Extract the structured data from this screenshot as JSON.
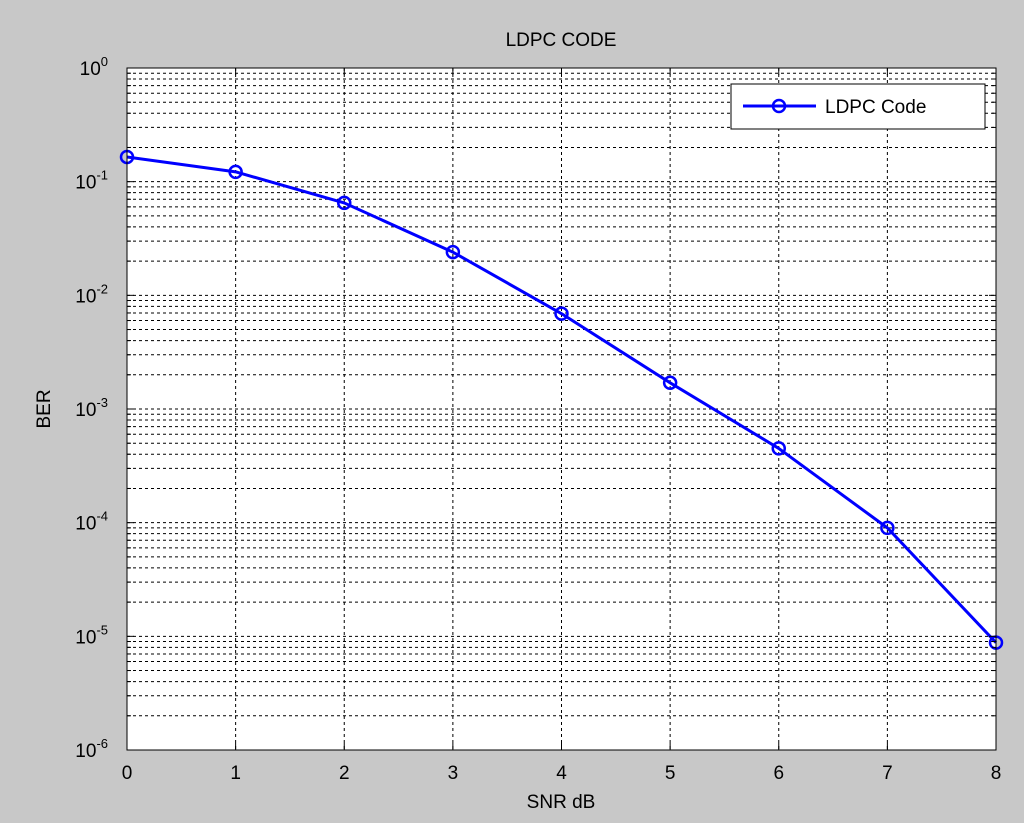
{
  "colors": {
    "figure_bg": "#c8c8c8",
    "axes_bg": "#ffffff",
    "series": "#0000ff",
    "grid": "#000000"
  },
  "chart_data": {
    "type": "line",
    "title": "LDPC CODE",
    "xlabel": "SNR dB",
    "ylabel": "BER",
    "yscale": "log",
    "xlim": [
      0,
      8
    ],
    "ylim": [
      1e-06,
      1
    ],
    "xticks": [
      "0",
      "1",
      "2",
      "3",
      "4",
      "5",
      "6",
      "7",
      "8"
    ],
    "yticks": [
      {
        "base": "10",
        "exp": "0"
      },
      {
        "base": "10",
        "exp": "-1"
      },
      {
        "base": "10",
        "exp": "-2"
      },
      {
        "base": "10",
        "exp": "-3"
      },
      {
        "base": "10",
        "exp": "-4"
      },
      {
        "base": "10",
        "exp": "-5"
      },
      {
        "base": "10",
        "exp": "-6"
      }
    ],
    "grid": true,
    "grid_style": "dashed",
    "legend_position": "top-right",
    "series": [
      {
        "name": "LDPC Code",
        "marker": "circle",
        "color": "#0000ff",
        "x": [
          0,
          1,
          2,
          3,
          4,
          5,
          6,
          7,
          8
        ],
        "y": [
          0.165,
          0.122,
          0.065,
          0.024,
          0.0069,
          0.0017,
          0.00045,
          9e-05,
          8.8e-06
        ]
      }
    ]
  }
}
